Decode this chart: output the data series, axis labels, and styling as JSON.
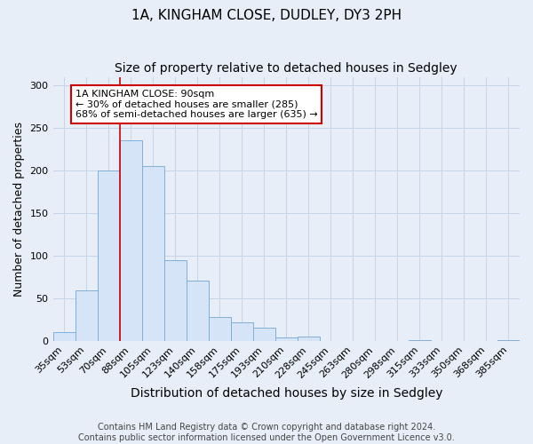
{
  "title": "1A, KINGHAM CLOSE, DUDLEY, DY3 2PH",
  "subtitle": "Size of property relative to detached houses in Sedgley",
  "xlabel": "Distribution of detached houses by size in Sedgley",
  "ylabel": "Number of detached properties",
  "bar_labels": [
    "35sqm",
    "53sqm",
    "70sqm",
    "88sqm",
    "105sqm",
    "123sqm",
    "140sqm",
    "158sqm",
    "175sqm",
    "193sqm",
    "210sqm",
    "228sqm",
    "245sqm",
    "263sqm",
    "280sqm",
    "298sqm",
    "315sqm",
    "333sqm",
    "350sqm",
    "368sqm",
    "385sqm"
  ],
  "bar_values": [
    10,
    59,
    200,
    235,
    205,
    95,
    71,
    28,
    22,
    15,
    4,
    5,
    0,
    0,
    0,
    0,
    1,
    0,
    0,
    0,
    1
  ],
  "bar_color": "#d6e4f7",
  "bar_edge_color": "#7fb0d8",
  "vline_x_index": 3,
  "vline_color": "#cc0000",
  "ylim": [
    0,
    310
  ],
  "yticks": [
    0,
    50,
    100,
    150,
    200,
    250,
    300
  ],
  "annotation_text": "1A KINGHAM CLOSE: 90sqm\n← 30% of detached houses are smaller (285)\n68% of semi-detached houses are larger (635) →",
  "annotation_box_color": "#ffffff",
  "annotation_box_edge": "#cc0000",
  "bg_color": "#e8eef8",
  "plot_bg_color": "#e8eef8",
  "grid_color": "#c5d4e8",
  "footer_line1": "Contains HM Land Registry data © Crown copyright and database right 2024.",
  "footer_line2": "Contains public sector information licensed under the Open Government Licence v3.0.",
  "title_fontsize": 11,
  "subtitle_fontsize": 10,
  "xlabel_fontsize": 10,
  "ylabel_fontsize": 9,
  "tick_fontsize": 8,
  "annotation_fontsize": 8,
  "footer_fontsize": 7
}
